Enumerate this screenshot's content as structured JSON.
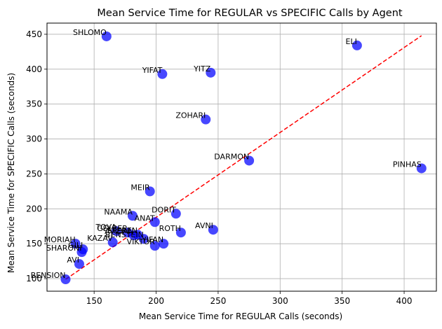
{
  "chart_data": {
    "type": "scatter",
    "title": "Mean Service Time for REGULAR vs SPECIFIC Calls by Agent",
    "xlabel": "Mean Service Time for REGULAR Calls (seconds)",
    "ylabel": "Mean Service Time for SPECIFIC Calls (seconds)",
    "xlim": [
      112,
      426
    ],
    "ylim": [
      82,
      466
    ],
    "xticks": [
      150,
      200,
      250,
      300,
      350,
      400
    ],
    "yticks": [
      100,
      150,
      200,
      250,
      300,
      350,
      400,
      450
    ],
    "grid": true,
    "point_color": "#0000ff",
    "reference_line": {
      "from": [
        127,
        99
      ],
      "to": [
        414,
        448
      ],
      "color": "#ff0000",
      "style": "dashed"
    },
    "points": [
      {
        "label": "SHLOMO",
        "x": 160,
        "y": 447
      },
      {
        "label": "ELI",
        "x": 362,
        "y": 434
      },
      {
        "label": "YIFAT",
        "x": 205,
        "y": 393
      },
      {
        "label": "YITZ",
        "x": 244,
        "y": 395
      },
      {
        "label": "ZOHARI",
        "x": 240,
        "y": 328
      },
      {
        "label": "DARMON",
        "x": 275,
        "y": 269
      },
      {
        "label": "PINHAS",
        "x": 414,
        "y": 258
      },
      {
        "label": "MEIR",
        "x": 195,
        "y": 225
      },
      {
        "label": "NAAMA",
        "x": 181,
        "y": 190
      },
      {
        "label": "DORIT",
        "x": 216,
        "y": 193
      },
      {
        "label": "ANAT",
        "x": 199,
        "y": 181
      },
      {
        "label": "AVNI",
        "x": 246,
        "y": 170
      },
      {
        "label": "ROTH",
        "x": 220,
        "y": 166
      },
      {
        "label": "TOVA",
        "x": 168,
        "y": 168
      },
      {
        "label": "GELBER",
        "x": 177,
        "y": 166
      },
      {
        "label": "STEREN",
        "x": 185,
        "y": 163
      },
      {
        "label": "AVIDAN",
        "x": 182,
        "y": 162
      },
      {
        "label": "BENSTEIN",
        "x": 190,
        "y": 157
      },
      {
        "label": "YIFAN",
        "x": 206,
        "y": 150
      },
      {
        "label": "VIKTOR",
        "x": 199,
        "y": 147
      },
      {
        "label": "KAZAV",
        "x": 165,
        "y": 152
      },
      {
        "label": "MORIAH",
        "x": 135,
        "y": 150
      },
      {
        "label": "GILI",
        "x": 141,
        "y": 142
      },
      {
        "label": "SHARONI",
        "x": 140,
        "y": 138
      },
      {
        "label": "AVI",
        "x": 138,
        "y": 121
      },
      {
        "label": "BENSION",
        "x": 127,
        "y": 99
      }
    ]
  }
}
